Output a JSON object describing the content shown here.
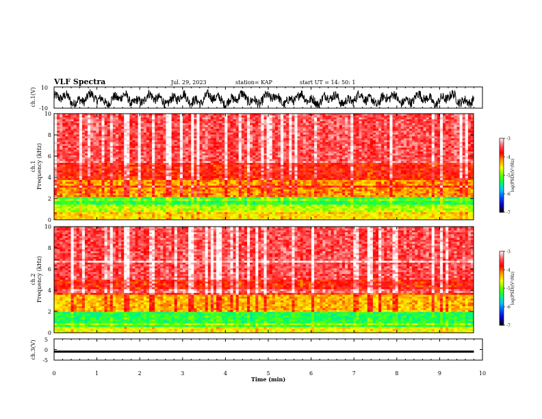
{
  "header": {
    "title": "VLF Spectra",
    "date": "Jul. 29, 2023",
    "station": "station= KAP",
    "start": "start UT =  14: 50: 1"
  },
  "colorbar": {
    "label": "log(PSD)(V²/Hz)",
    "ticks": [
      "-3",
      "-4",
      "-5",
      "-6",
      "-7"
    ],
    "colors": [
      "#000000",
      "#0000c8",
      "#0050ff",
      "#00c8ff",
      "#00ff64",
      "#64ff00",
      "#ffff00",
      "#ffa000",
      "#ff0000",
      "#ff6060",
      "#ffffff"
    ]
  },
  "chart_data": [
    {
      "type": "line",
      "panel": "ch1-waveform",
      "ylabel": "ch.1(V)",
      "ylim": [
        -10,
        10
      ],
      "yticks": [
        "10",
        "-10"
      ],
      "xlim": [
        0,
        10
      ],
      "note_series": "dense noisy waveform oscillating roughly between -8 and 5 V"
    },
    {
      "type": "heatmap",
      "panel": "ch1-spectrogram",
      "ylabel": "ch.1 Frequency (kHz)",
      "ylim": [
        0,
        10
      ],
      "yticks": [
        "0",
        "2",
        "4",
        "6",
        "8",
        "10"
      ],
      "xlim": [
        0,
        10
      ],
      "zlabel": "log(PSD)(V²/Hz)",
      "zlim": [
        -7,
        -3
      ],
      "bands": [
        {
          "freq_khz": [
            0,
            0.6
          ],
          "level": -4.5
        },
        {
          "freq_khz": [
            0.6,
            1.3
          ],
          "level": -4.8
        },
        {
          "freq_khz": [
            1.3,
            2.2
          ],
          "level": -5.3
        },
        {
          "freq_khz": [
            2.2,
            3.8
          ],
          "level": -4.2
        },
        {
          "freq_khz": [
            3.8,
            5.5
          ],
          "level": -3.9
        },
        {
          "freq_khz": [
            5.5,
            10
          ],
          "level": -3.6
        }
      ]
    },
    {
      "type": "heatmap",
      "panel": "ch2-spectrogram",
      "ylabel": "ch.2 Frequency (kHz)",
      "ylim": [
        0,
        10
      ],
      "yticks": [
        "0",
        "2",
        "4",
        "6",
        "8",
        "10"
      ],
      "xlim": [
        0,
        10
      ],
      "zlabel": "log(PSD)(V²/Hz)",
      "zlim": [
        -7,
        -3
      ],
      "bands": [
        {
          "freq_khz": [
            0,
            0.6
          ],
          "level": -4.6
        },
        {
          "freq_khz": [
            0.6,
            2.0
          ],
          "level": -5.3
        },
        {
          "freq_khz": [
            2.0,
            3.5
          ],
          "level": -4.3
        },
        {
          "freq_khz": [
            3.5,
            5.0
          ],
          "level": -3.9
        },
        {
          "freq_khz": [
            5.0,
            10
          ],
          "level": -3.6
        }
      ]
    },
    {
      "type": "line",
      "panel": "ch3-waveform",
      "ylabel": "ch.3(V)",
      "ylim": [
        -5,
        5
      ],
      "yticks": [
        "5",
        "0",
        "-5"
      ],
      "xlim": [
        0,
        10
      ],
      "xlabel": "Time (min)",
      "xticks": [
        "0",
        "1",
        "2",
        "3",
        "4",
        "5",
        "6",
        "7",
        "8",
        "9",
        "10"
      ],
      "note_series": "thick flat band near -1 V from 0 to ~9.8 min"
    }
  ]
}
